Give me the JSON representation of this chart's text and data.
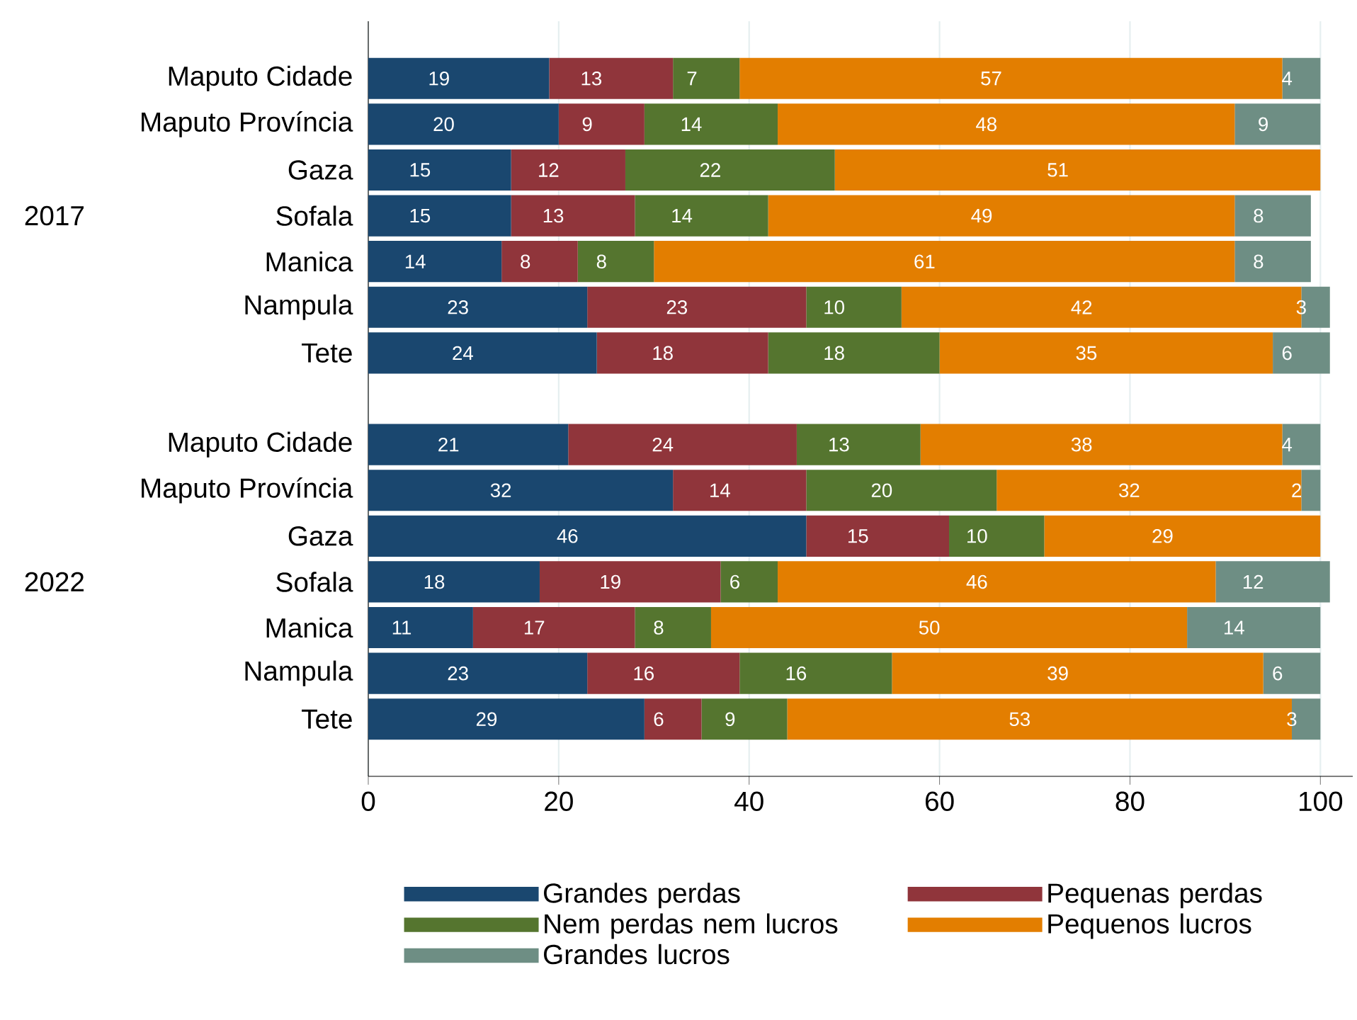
{
  "chart_data": {
    "type": "bar",
    "orientation": "horizontal",
    "stacked": true,
    "data_labels": true,
    "grid": "x",
    "legend": "bottom",
    "categories": [
      "Maputo Cidade",
      "Maputo Província",
      "Gaza",
      "Sofala",
      "Manica",
      "Nampula",
      "Tete",
      null,
      "Maputo Cidade",
      "Maputo Província",
      "Gaza",
      "Sofala",
      "Manica",
      "Nampula",
      "Tete"
    ],
    "series": [
      {
        "name": "Grandes perdas",
        "color": "#1a476f",
        "values": [
          19,
          20,
          15,
          15,
          14,
          23,
          24,
          null,
          21,
          32,
          46,
          18,
          11,
          23,
          29
        ]
      },
      {
        "name": "Pequenas perdas",
        "color": "#90353b",
        "values": [
          13,
          9,
          12,
          13,
          8,
          23,
          18,
          null,
          24,
          14,
          15,
          19,
          17,
          16,
          6
        ]
      },
      {
        "name": "Nem perdas nem lucros",
        "color": "#55752f",
        "values": [
          7,
          14,
          22,
          14,
          8,
          10,
          18,
          null,
          13,
          20,
          10,
          6,
          8,
          16,
          9
        ]
      },
      {
        "name": "Pequenos lucros",
        "color": "#e37e00",
        "values": [
          57,
          48,
          51,
          49,
          61,
          42,
          35,
          null,
          38,
          32,
          29,
          46,
          50,
          39,
          53
        ]
      },
      {
        "name": "Grandes lucros",
        "color": "#6e8e84",
        "values": [
          4,
          9,
          null,
          8,
          8,
          3,
          6,
          null,
          4,
          2,
          null,
          12,
          14,
          6,
          3
        ]
      }
    ],
    "xlim": [
      0,
      103.4
    ],
    "xticks": [
      0,
      20,
      40,
      60,
      80,
      100
    ],
    "annotations": [
      "2017",
      "2022"
    ]
  }
}
